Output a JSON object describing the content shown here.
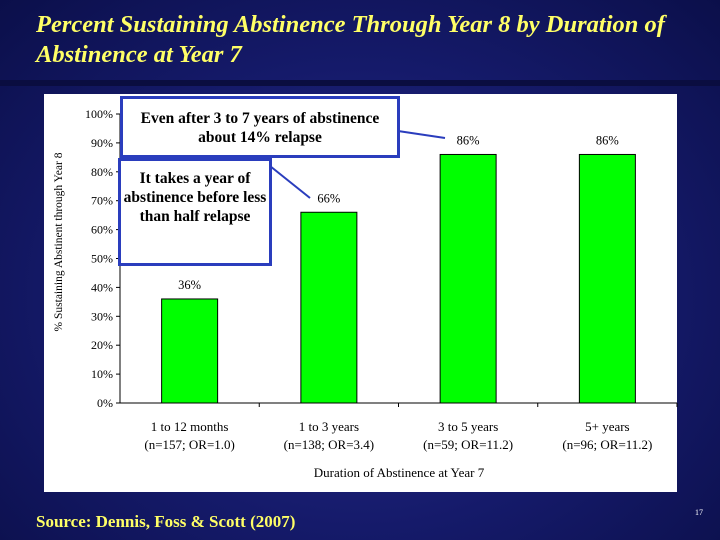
{
  "slide": {
    "title": "Percent Sustaining Abstinence Through Year 8 by Duration of Abstinence at Year 7",
    "source": "Source: Dennis, Foss & Scott (2007)",
    "slide_number": "17"
  },
  "callouts": {
    "relapse_14": "Even after 3 to 7 years of abstinence about 14% relapse",
    "half_relapse": "It takes a year of abstinence before less than half relapse"
  },
  "colors": {
    "background": "#151a6a",
    "title": "#ffff66",
    "bar_fill": "#00ff00",
    "callout_border": "#2a3dbd"
  },
  "chart_data": {
    "type": "bar",
    "categories": [
      [
        "1 to 12 months",
        "(n=157; OR=1.0)"
      ],
      [
        "1 to 3 years",
        "(n=138; OR=3.4)"
      ],
      [
        "3 to 5 years",
        "(n=59; OR=11.2)"
      ],
      [
        "5+ years",
        "(n=96; OR=11.2)"
      ]
    ],
    "values": [
      36,
      66,
      86,
      86
    ],
    "data_labels": [
      "36%",
      "66%",
      "86%",
      "86%"
    ],
    "xlabel": "Duration of Abstinence at Year 7",
    "ylabel": "% Sustaining Abstinent through Year 8",
    "ylim": [
      0,
      100
    ],
    "yticks": [
      "0%",
      "10%",
      "20%",
      "30%",
      "40%",
      "50%",
      "60%",
      "70%",
      "80%",
      "90%",
      "100%"
    ],
    "grid": false,
    "legend": "none"
  }
}
